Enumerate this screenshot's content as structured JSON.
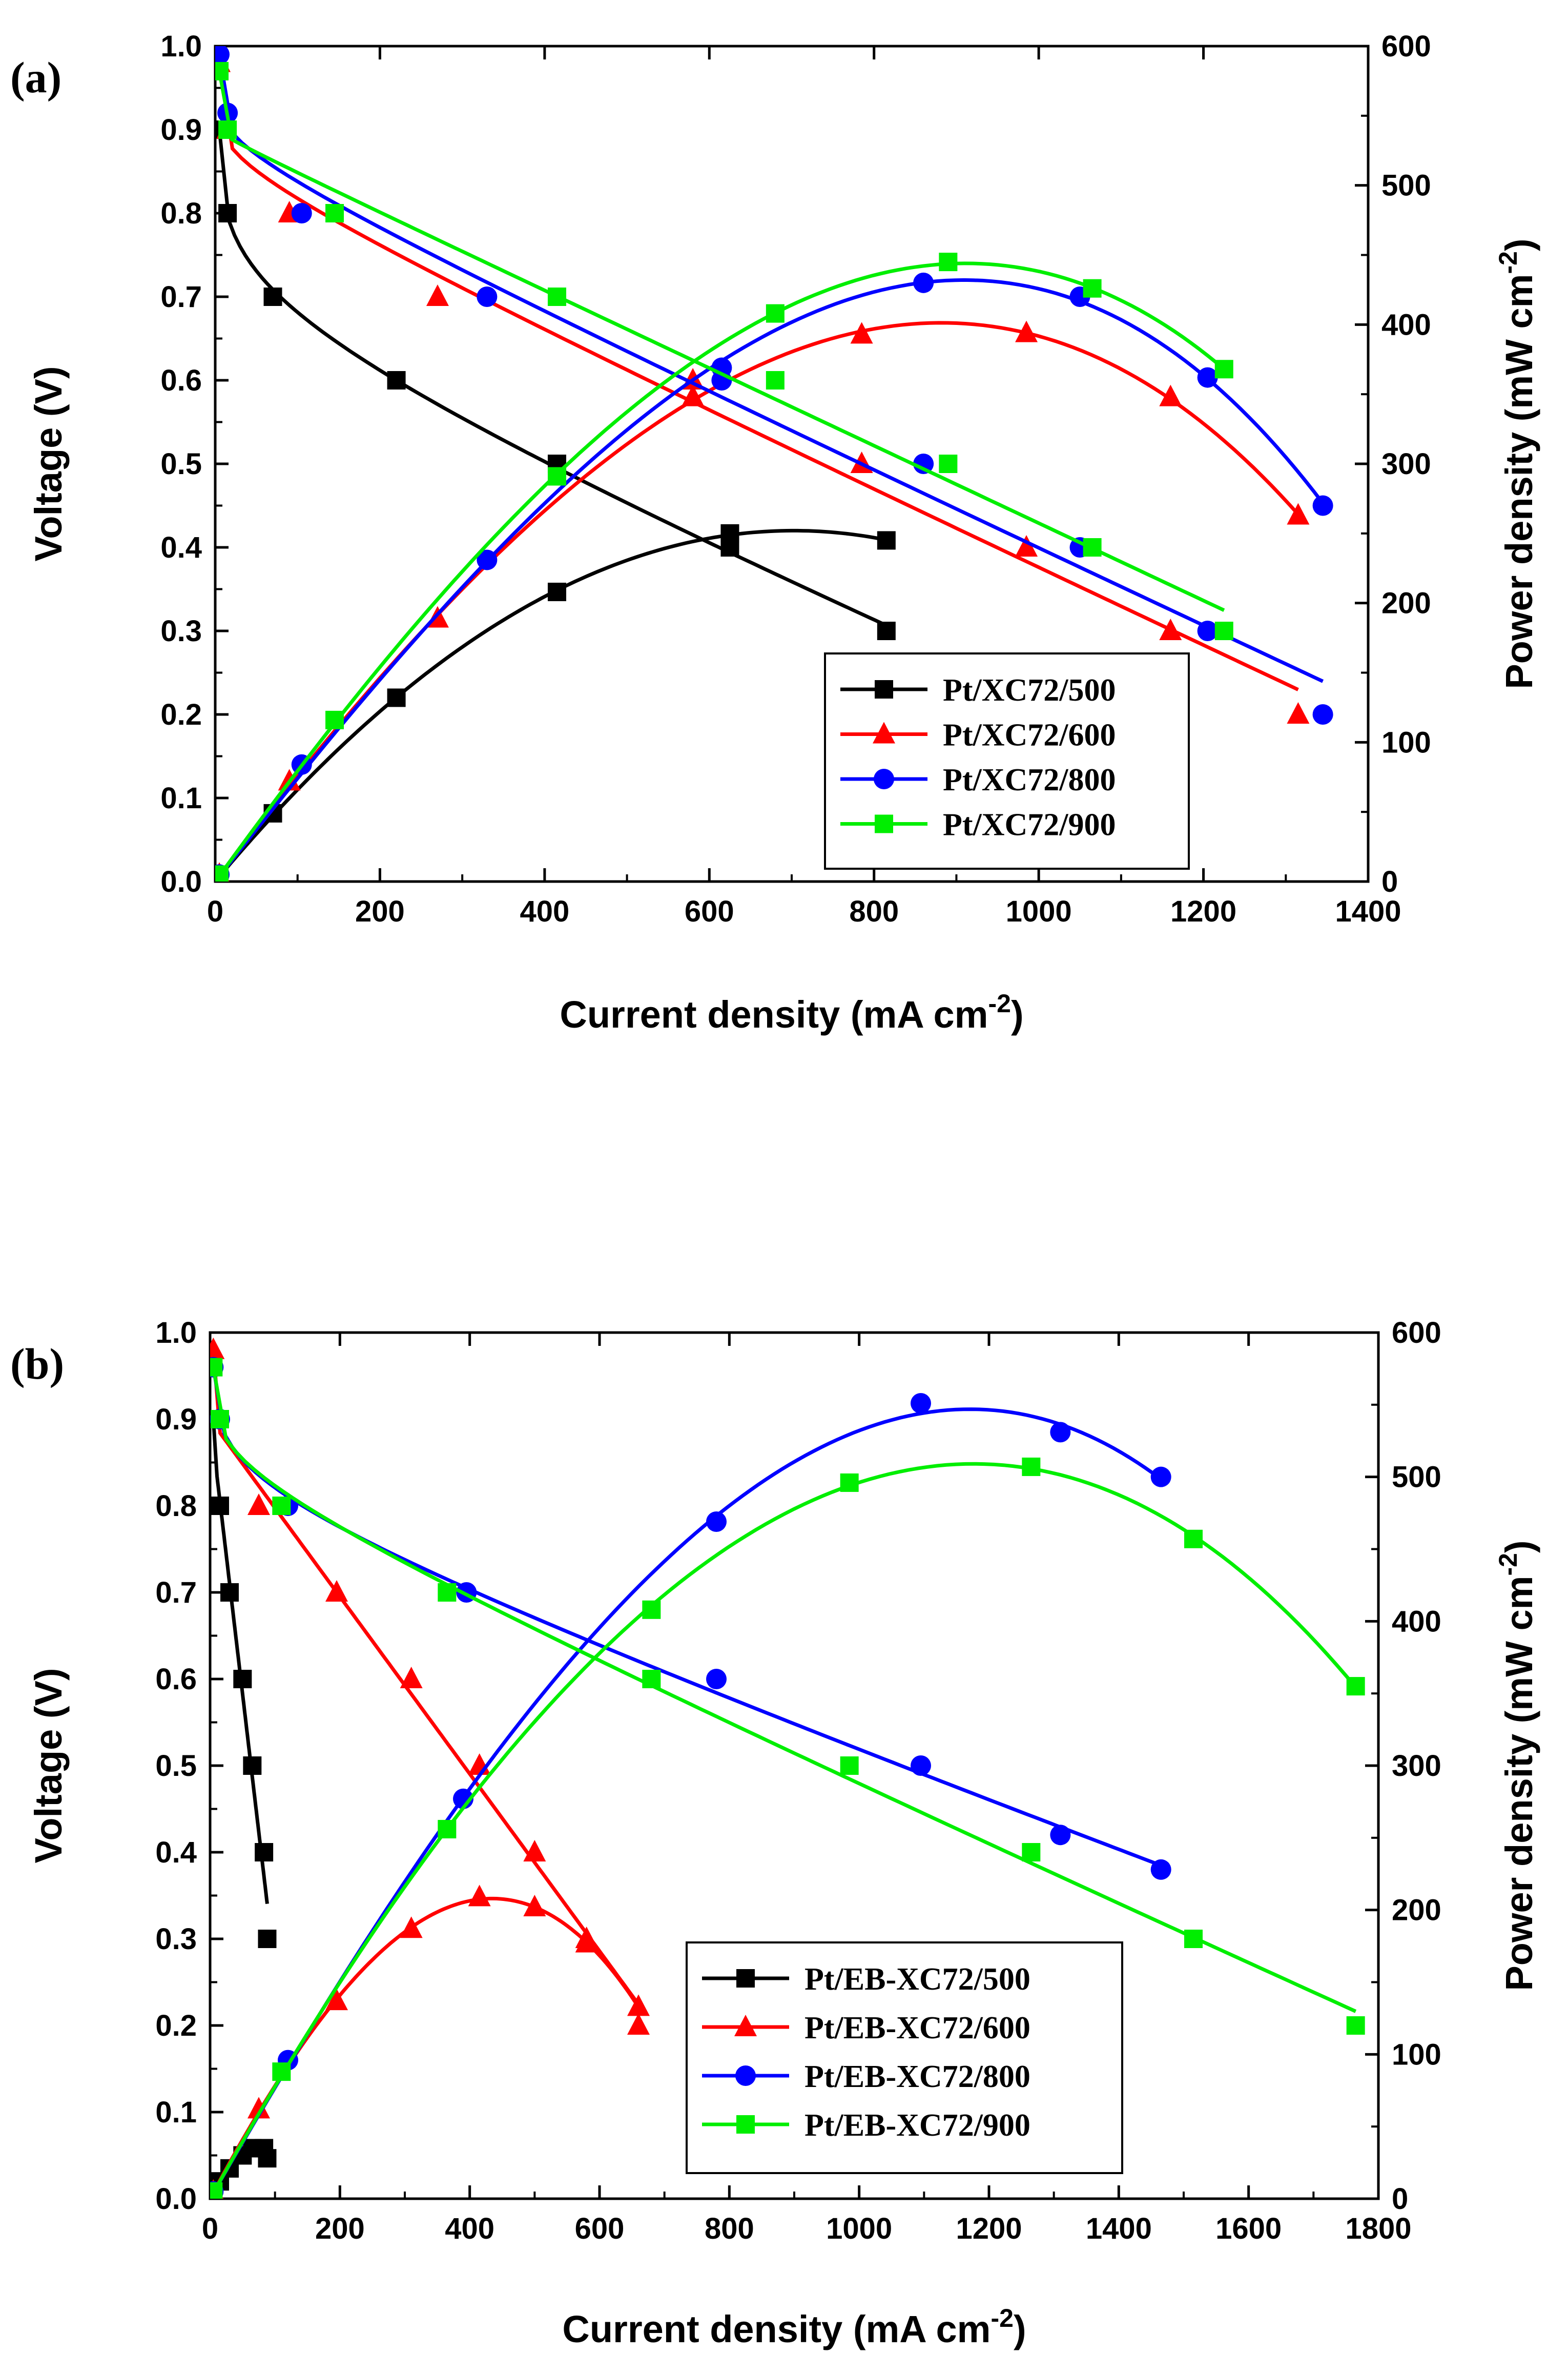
{
  "colors": {
    "500": "#000000",
    "600": "#ff0000",
    "800": "#0000ff",
    "900": "#00ee00"
  },
  "chart_data": [
    {
      "type": "line",
      "panel_label": "(a)",
      "xlabel": "Current density (mA cm",
      "xlabel_sup": "-2",
      "xlabel_end": ")",
      "ylabel": "Voltage (V)",
      "y2label": "Power density (mW cm",
      "y2label_sup": "-2",
      "y2label_end": ")",
      "xlim": [
        0,
        1400
      ],
      "ylim": [
        0,
        1.0
      ],
      "y2lim": [
        0,
        600
      ],
      "xticks": [
        0,
        200,
        400,
        600,
        800,
        1000,
        1200,
        1400
      ],
      "xtick_labels": [
        "0",
        "200",
        "400",
        "600",
        "800",
        "1000",
        "1200",
        "1400"
      ],
      "yticks": [
        0,
        0.1,
        0.2,
        0.3,
        0.4,
        0.5,
        0.6,
        0.7,
        0.8,
        0.9,
        1.0
      ],
      "ytick_labels": [
        "0.0",
        "0.1",
        "0.2",
        "0.3",
        "0.4",
        "0.5",
        "0.6",
        "0.7",
        "0.8",
        "0.9",
        "1.0"
      ],
      "y2ticks": [
        0,
        100,
        200,
        300,
        400,
        500,
        600
      ],
      "y2tick_labels": [
        "0",
        "100",
        "200",
        "300",
        "400",
        "500",
        "600"
      ],
      "legend_position": "center-right",
      "series": [
        {
          "name": "Pt/XC72/500",
          "color_key": "500",
          "marker": "square",
          "voltage": [
            [
              5,
              0.9
            ],
            [
              15,
              0.8
            ],
            [
              70,
              0.7
            ],
            [
              220,
              0.6
            ],
            [
              415,
              0.5
            ],
            [
              625,
              0.4
            ],
            [
              815,
              0.3
            ]
          ],
          "power": [
            [
              5,
              4.5
            ],
            [
              70,
              49
            ],
            [
              220,
              132
            ],
            [
              415,
              208
            ],
            [
              625,
              250
            ],
            [
              815,
              245
            ]
          ]
        },
        {
          "name": "Pt/XC72/600",
          "color_key": "600",
          "marker": "triangle",
          "voltage": [
            [
              5,
              0.98
            ],
            [
              15,
              0.9
            ],
            [
              90,
              0.8
            ],
            [
              270,
              0.7
            ],
            [
              580,
              0.6
            ],
            [
              785,
              0.5
            ],
            [
              985,
              0.4
            ],
            [
              1160,
              0.3
            ],
            [
              1315,
              0.2
            ]
          ],
          "power": [
            [
              5,
              5
            ],
            [
              90,
              72
            ],
            [
              270,
              189
            ],
            [
              580,
              348
            ],
            [
              785,
              393
            ],
            [
              985,
              394
            ],
            [
              1160,
              348
            ],
            [
              1315,
              263
            ]
          ]
        },
        {
          "name": "Pt/XC72/800",
          "color_key": "800",
          "marker": "circle",
          "voltage": [
            [
              5,
              0.99
            ],
            [
              15,
              0.92
            ],
            [
              105,
              0.8
            ],
            [
              330,
              0.7
            ],
            [
              615,
              0.6
            ],
            [
              860,
              0.5
            ],
            [
              1050,
              0.4
            ],
            [
              1205,
              0.3
            ],
            [
              1345,
              0.2
            ]
          ],
          "power": [
            [
              5,
              5
            ],
            [
              105,
              84
            ],
            [
              330,
              231
            ],
            [
              615,
              369
            ],
            [
              860,
              430
            ],
            [
              1050,
              420
            ],
            [
              1205,
              362
            ],
            [
              1345,
              270
            ]
          ]
        },
        {
          "name": "Pt/XC72/900",
          "color_key": "900",
          "marker": "square",
          "voltage": [
            [
              5,
              0.97
            ],
            [
              15,
              0.9
            ],
            [
              145,
              0.8
            ],
            [
              415,
              0.7
            ],
            [
              680,
              0.6
            ],
            [
              890,
              0.5
            ],
            [
              1065,
              0.4
            ],
            [
              1225,
              0.3
            ]
          ],
          "power": [
            [
              5,
              5
            ],
            [
              145,
              116
            ],
            [
              415,
              291
            ],
            [
              680,
              408
            ],
            [
              890,
              445
            ],
            [
              1065,
              426
            ],
            [
              1225,
              368
            ]
          ]
        }
      ]
    },
    {
      "type": "line",
      "panel_label": "(b)",
      "xlabel": "Current density (mA cm",
      "xlabel_sup": "-2",
      "xlabel_end": ")",
      "ylabel": "Voltage (V)",
      "y2label": "Power density (mW cm",
      "y2label_sup": "-2",
      "y2label_end": ")",
      "xlim": [
        0,
        1800
      ],
      "ylim": [
        0,
        1.0
      ],
      "y2lim": [
        0,
        600
      ],
      "xticks": [
        0,
        200,
        400,
        600,
        800,
        1000,
        1200,
        1400,
        1600,
        1800
      ],
      "xtick_labels": [
        "0",
        "200",
        "400",
        "600",
        "800",
        "1000",
        "1200",
        "1400",
        "1600",
        "1800"
      ],
      "yticks": [
        0,
        0.1,
        0.2,
        0.3,
        0.4,
        0.5,
        0.6,
        0.7,
        0.8,
        0.9,
        1.0
      ],
      "ytick_labels": [
        "0.0",
        "0.1",
        "0.2",
        "0.3",
        "0.4",
        "0.5",
        "0.6",
        "0.7",
        "0.8",
        "0.9",
        "1.0"
      ],
      "y2ticks": [
        0,
        100,
        200,
        300,
        400,
        500,
        600
      ],
      "y2tick_labels": [
        "0",
        "100",
        "200",
        "300",
        "400",
        "500",
        "600"
      ],
      "legend_position": "bottom-center",
      "series": [
        {
          "name": "Pt/EB-XC72/500",
          "color_key": "500",
          "marker": "square",
          "voltage": [
            [
              5,
              0.9
            ],
            [
              15,
              0.8
            ],
            [
              30,
              0.7
            ],
            [
              50,
              0.6
            ],
            [
              65,
              0.5
            ],
            [
              83,
              0.4
            ],
            [
              88,
              0.3
            ]
          ],
          "power": [
            [
              5,
              4.5
            ],
            [
              15,
              12
            ],
            [
              30,
              21
            ],
            [
              50,
              30
            ],
            [
              65,
              35
            ],
            [
              83,
              35
            ],
            [
              88,
              28
            ]
          ]
        },
        {
          "name": "Pt/EB-XC72/600",
          "color_key": "600",
          "marker": "triangle",
          "voltage": [
            [
              5,
              0.98
            ],
            [
              75,
              0.8
            ],
            [
              195,
              0.7
            ],
            [
              310,
              0.6
            ],
            [
              415,
              0.5
            ],
            [
              500,
              0.4
            ],
            [
              580,
              0.3
            ],
            [
              660,
              0.2
            ]
          ],
          "power": [
            [
              5,
              5
            ],
            [
              75,
              62
            ],
            [
              195,
              137
            ],
            [
              310,
              187
            ],
            [
              415,
              209
            ],
            [
              500,
              202
            ],
            [
              580,
              177
            ],
            [
              660,
              133
            ]
          ]
        },
        {
          "name": "Pt/EB-XC72/800",
          "color_key": "800",
          "marker": "circle",
          "voltage": [
            [
              5,
              0.96
            ],
            [
              15,
              0.9
            ],
            [
              120,
              0.8
            ],
            [
              395,
              0.7
            ],
            [
              780,
              0.6
            ],
            [
              1095,
              0.5
            ],
            [
              1310,
              0.42
            ],
            [
              1465,
              0.38
            ]
          ],
          "power": [
            [
              5,
              5
            ],
            [
              120,
              96
            ],
            [
              390,
              277
            ],
            [
              780,
              469
            ],
            [
              1095,
              551
            ],
            [
              1310,
              531
            ],
            [
              1465,
              500
            ]
          ]
        },
        {
          "name": "Pt/EB-XC72/900",
          "color_key": "900",
          "marker": "square",
          "voltage": [
            [
              5,
              0.96
            ],
            [
              15,
              0.9
            ],
            [
              110,
              0.8
            ],
            [
              365,
              0.7
            ],
            [
              680,
              0.6
            ],
            [
              985,
              0.5
            ],
            [
              1265,
              0.4
            ],
            [
              1515,
              0.3
            ],
            [
              1765,
              0.2
            ]
          ],
          "power": [
            [
              5,
              5
            ],
            [
              110,
              88
            ],
            [
              365,
              256
            ],
            [
              680,
              408
            ],
            [
              985,
              496
            ],
            [
              1265,
              507
            ],
            [
              1515,
              457
            ],
            [
              1765,
              355
            ]
          ]
        }
      ]
    }
  ]
}
